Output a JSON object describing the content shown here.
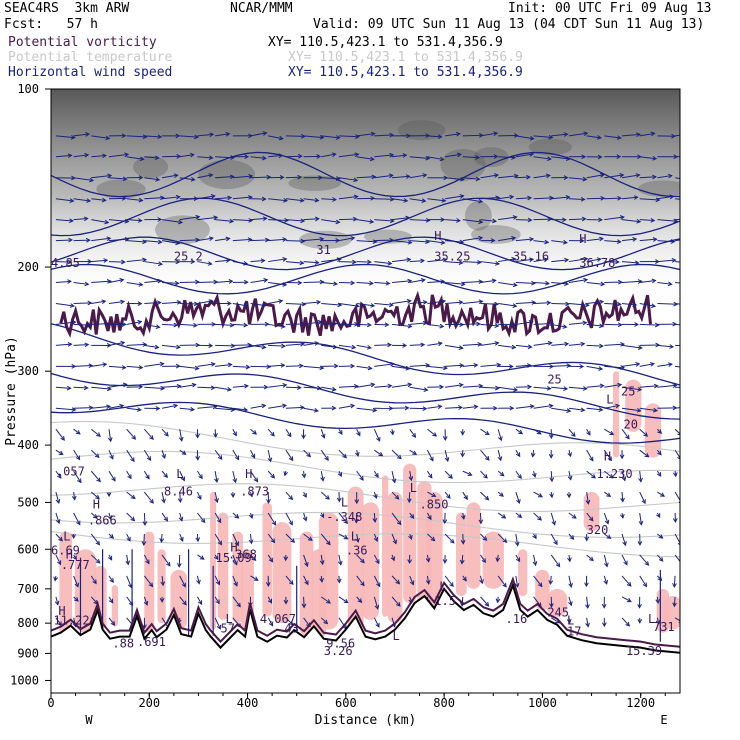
{
  "header": {
    "model": "SEAC4RS  3km ARW",
    "fcst": "Fcst:   57 h",
    "org": "NCAR/MMM",
    "init": "Init: 00 UTC Fri 09 Aug 13",
    "valid": "Valid: 09 UTC Sun 11 Aug 13 (04 CDT Sun 11 Aug 13)"
  },
  "fields": [
    {
      "name": "Potential vorticity",
      "xy": "XY= 110.5,423.1 to 531.4,356.9",
      "color": "#4a1a4a"
    },
    {
      "name": "Potential temperature",
      "xy": "XY= 110.5,423.1 to 531.4,356.9",
      "color": "#c8c8c8"
    },
    {
      "name": "Horizontal wind speed",
      "xy": "XY= 110.5,423.1 to 531.4,356.9",
      "color": "#1a237e"
    }
  ],
  "chart_data": {
    "type": "cross-section",
    "xlabel": "Distance (km)",
    "ylabel": "Pressure (hPa)",
    "xlim": [
      0,
      1280
    ],
    "ylim": [
      1050,
      100
    ],
    "y_scale": "log-pressure",
    "x_ticks": [
      0,
      200,
      400,
      600,
      800,
      1000,
      1200
    ],
    "y_ticks": [
      100,
      200,
      300,
      400,
      500,
      600,
      700,
      800,
      900,
      1000
    ],
    "x_end_labels": {
      "left": "W",
      "right": "E"
    },
    "terrain_km_hpa": [
      [
        0,
        843
      ],
      [
        20,
        830
      ],
      [
        40,
        808
      ],
      [
        60,
        838
      ],
      [
        80,
        820
      ],
      [
        95,
        760
      ],
      [
        105,
        820
      ],
      [
        120,
        850
      ],
      [
        140,
        843
      ],
      [
        160,
        843
      ],
      [
        175,
        778
      ],
      [
        190,
        850
      ],
      [
        205,
        822
      ],
      [
        215,
        845
      ],
      [
        235,
        820
      ],
      [
        250,
        775
      ],
      [
        265,
        835
      ],
      [
        285,
        843
      ],
      [
        300,
        770
      ],
      [
        315,
        822
      ],
      [
        325,
        843
      ],
      [
        345,
        880
      ],
      [
        365,
        846
      ],
      [
        380,
        822
      ],
      [
        395,
        843
      ],
      [
        405,
        758
      ],
      [
        420,
        843
      ],
      [
        440,
        860
      ],
      [
        460,
        840
      ],
      [
        480,
        846
      ],
      [
        495,
        822
      ],
      [
        515,
        845
      ],
      [
        535,
        810
      ],
      [
        555,
        850
      ],
      [
        580,
        856
      ],
      [
        600,
        820
      ],
      [
        620,
        780
      ],
      [
        640,
        843
      ],
      [
        660,
        852
      ],
      [
        680,
        843
      ],
      [
        700,
        820
      ],
      [
        720,
        785
      ],
      [
        740,
        740
      ],
      [
        760,
        720
      ],
      [
        780,
        755
      ],
      [
        800,
        700
      ],
      [
        820,
        735
      ],
      [
        840,
        760
      ],
      [
        860,
        745
      ],
      [
        880,
        770
      ],
      [
        900,
        780
      ],
      [
        920,
        760
      ],
      [
        940,
        690
      ],
      [
        955,
        760
      ],
      [
        970,
        780
      ],
      [
        990,
        760
      ],
      [
        1010,
        790
      ],
      [
        1030,
        805
      ],
      [
        1050,
        840
      ],
      [
        1080,
        855
      ],
      [
        1110,
        865
      ],
      [
        1140,
        870
      ],
      [
        1170,
        875
      ],
      [
        1200,
        880
      ],
      [
        1230,
        890
      ],
      [
        1250,
        893
      ],
      [
        1280,
        898
      ]
    ],
    "extrema_labels": [
      {
        "text": "4.85",
        "x": 0,
        "p": 200
      },
      {
        "text": "25.2",
        "x": 250,
        "p": 195
      },
      {
        "text": "31",
        "x": 540,
        "p": 190
      },
      {
        "text": "H",
        "x": 780,
        "p": 180
      },
      {
        "text": "35.25",
        "x": 780,
        "p": 195
      },
      {
        "text": "35.16",
        "x": 940,
        "p": 195
      },
      {
        "text": "H",
        "x": 1075,
        "p": 182
      },
      {
        "text": "36.78",
        "x": 1075,
        "p": 200
      },
      {
        "text": "25",
        "x": 1010,
        "p": 315
      },
      {
        "text": "L",
        "x": 1130,
        "p": 340
      },
      {
        "text": "25",
        "x": 1160,
        "p": 330
      },
      {
        "text": "20",
        "x": 1165,
        "p": 375
      },
      {
        "text": ".057",
        "x": 10,
        "p": 450
      },
      {
        "text": "L",
        "x": 255,
        "p": 455
      },
      {
        "text": "8.46",
        "x": 230,
        "p": 487
      },
      {
        "text": "H",
        "x": 395,
        "p": 455
      },
      {
        "text": ".873",
        "x": 385,
        "p": 487
      },
      {
        "text": "H",
        "x": 1125,
        "p": 425
      },
      {
        "text": "1.230",
        "x": 1110,
        "p": 455
      },
      {
        "text": "L",
        "x": 730,
        "p": 480
      },
      {
        "text": ".850",
        "x": 750,
        "p": 512
      },
      {
        "text": "L",
        "x": 590,
        "p": 508
      },
      {
        "text": "-.348",
        "x": 560,
        "p": 538
      },
      {
        "text": "H",
        "x": 85,
        "p": 512
      },
      {
        "text": ".866",
        "x": 75,
        "p": 545
      },
      {
        "text": "320",
        "x": 1090,
        "p": 565
      },
      {
        "text": "L",
        "x": 610,
        "p": 580
      },
      {
        "text": ".36",
        "x": 600,
        "p": 612
      },
      {
        "text": "L",
        "x": 25,
        "p": 580
      },
      {
        "text": "6.69",
        "x": 0,
        "p": 612
      },
      {
        "text": "H",
        "x": 30,
        "p": 622
      },
      {
        "text": ".777",
        "x": 20,
        "p": 648
      },
      {
        "text": "H",
        "x": 365,
        "p": 605
      },
      {
        "text": "15.09",
        "x": 335,
        "p": 630
      },
      {
        "text": ".368",
        "x": 360,
        "p": 622
      },
      {
        "text": "L",
        "x": 790,
        "p": 705
      },
      {
        "text": "1.5",
        "x": 780,
        "p": 745
      },
      {
        "text": "H",
        "x": 15,
        "p": 775
      },
      {
        "text": "11.22",
        "x": 5,
        "p": 805
      },
      {
        "text": "L",
        "x": 355,
        "p": 800
      },
      {
        "text": "57",
        "x": 345,
        "p": 830
      },
      {
        "text": "4.067",
        "x": 425,
        "p": 800
      },
      {
        "text": "43",
        "x": 475,
        "p": 830
      },
      {
        "text": ".16",
        "x": 925,
        "p": 800
      },
      {
        "text": "245",
        "x": 1010,
        "p": 780
      },
      {
        "text": "L",
        "x": 1050,
        "p": 805
      },
      {
        "text": "17",
        "x": 1050,
        "p": 840
      },
      {
        "text": "L",
        "x": 1215,
        "p": 800
      },
      {
        "text": "731",
        "x": 1225,
        "p": 825
      },
      {
        "text": ".88",
        "x": 125,
        "p": 880
      },
      {
        "text": ".691",
        "x": 175,
        "p": 875
      },
      {
        "text": "3.26",
        "x": 555,
        "p": 905
      },
      {
        "text": "9.56",
        "x": 560,
        "p": 880
      },
      {
        "text": "L",
        "x": 695,
        "p": 855
      },
      {
        "text": "15.39",
        "x": 1170,
        "p": 905
      }
    ]
  }
}
